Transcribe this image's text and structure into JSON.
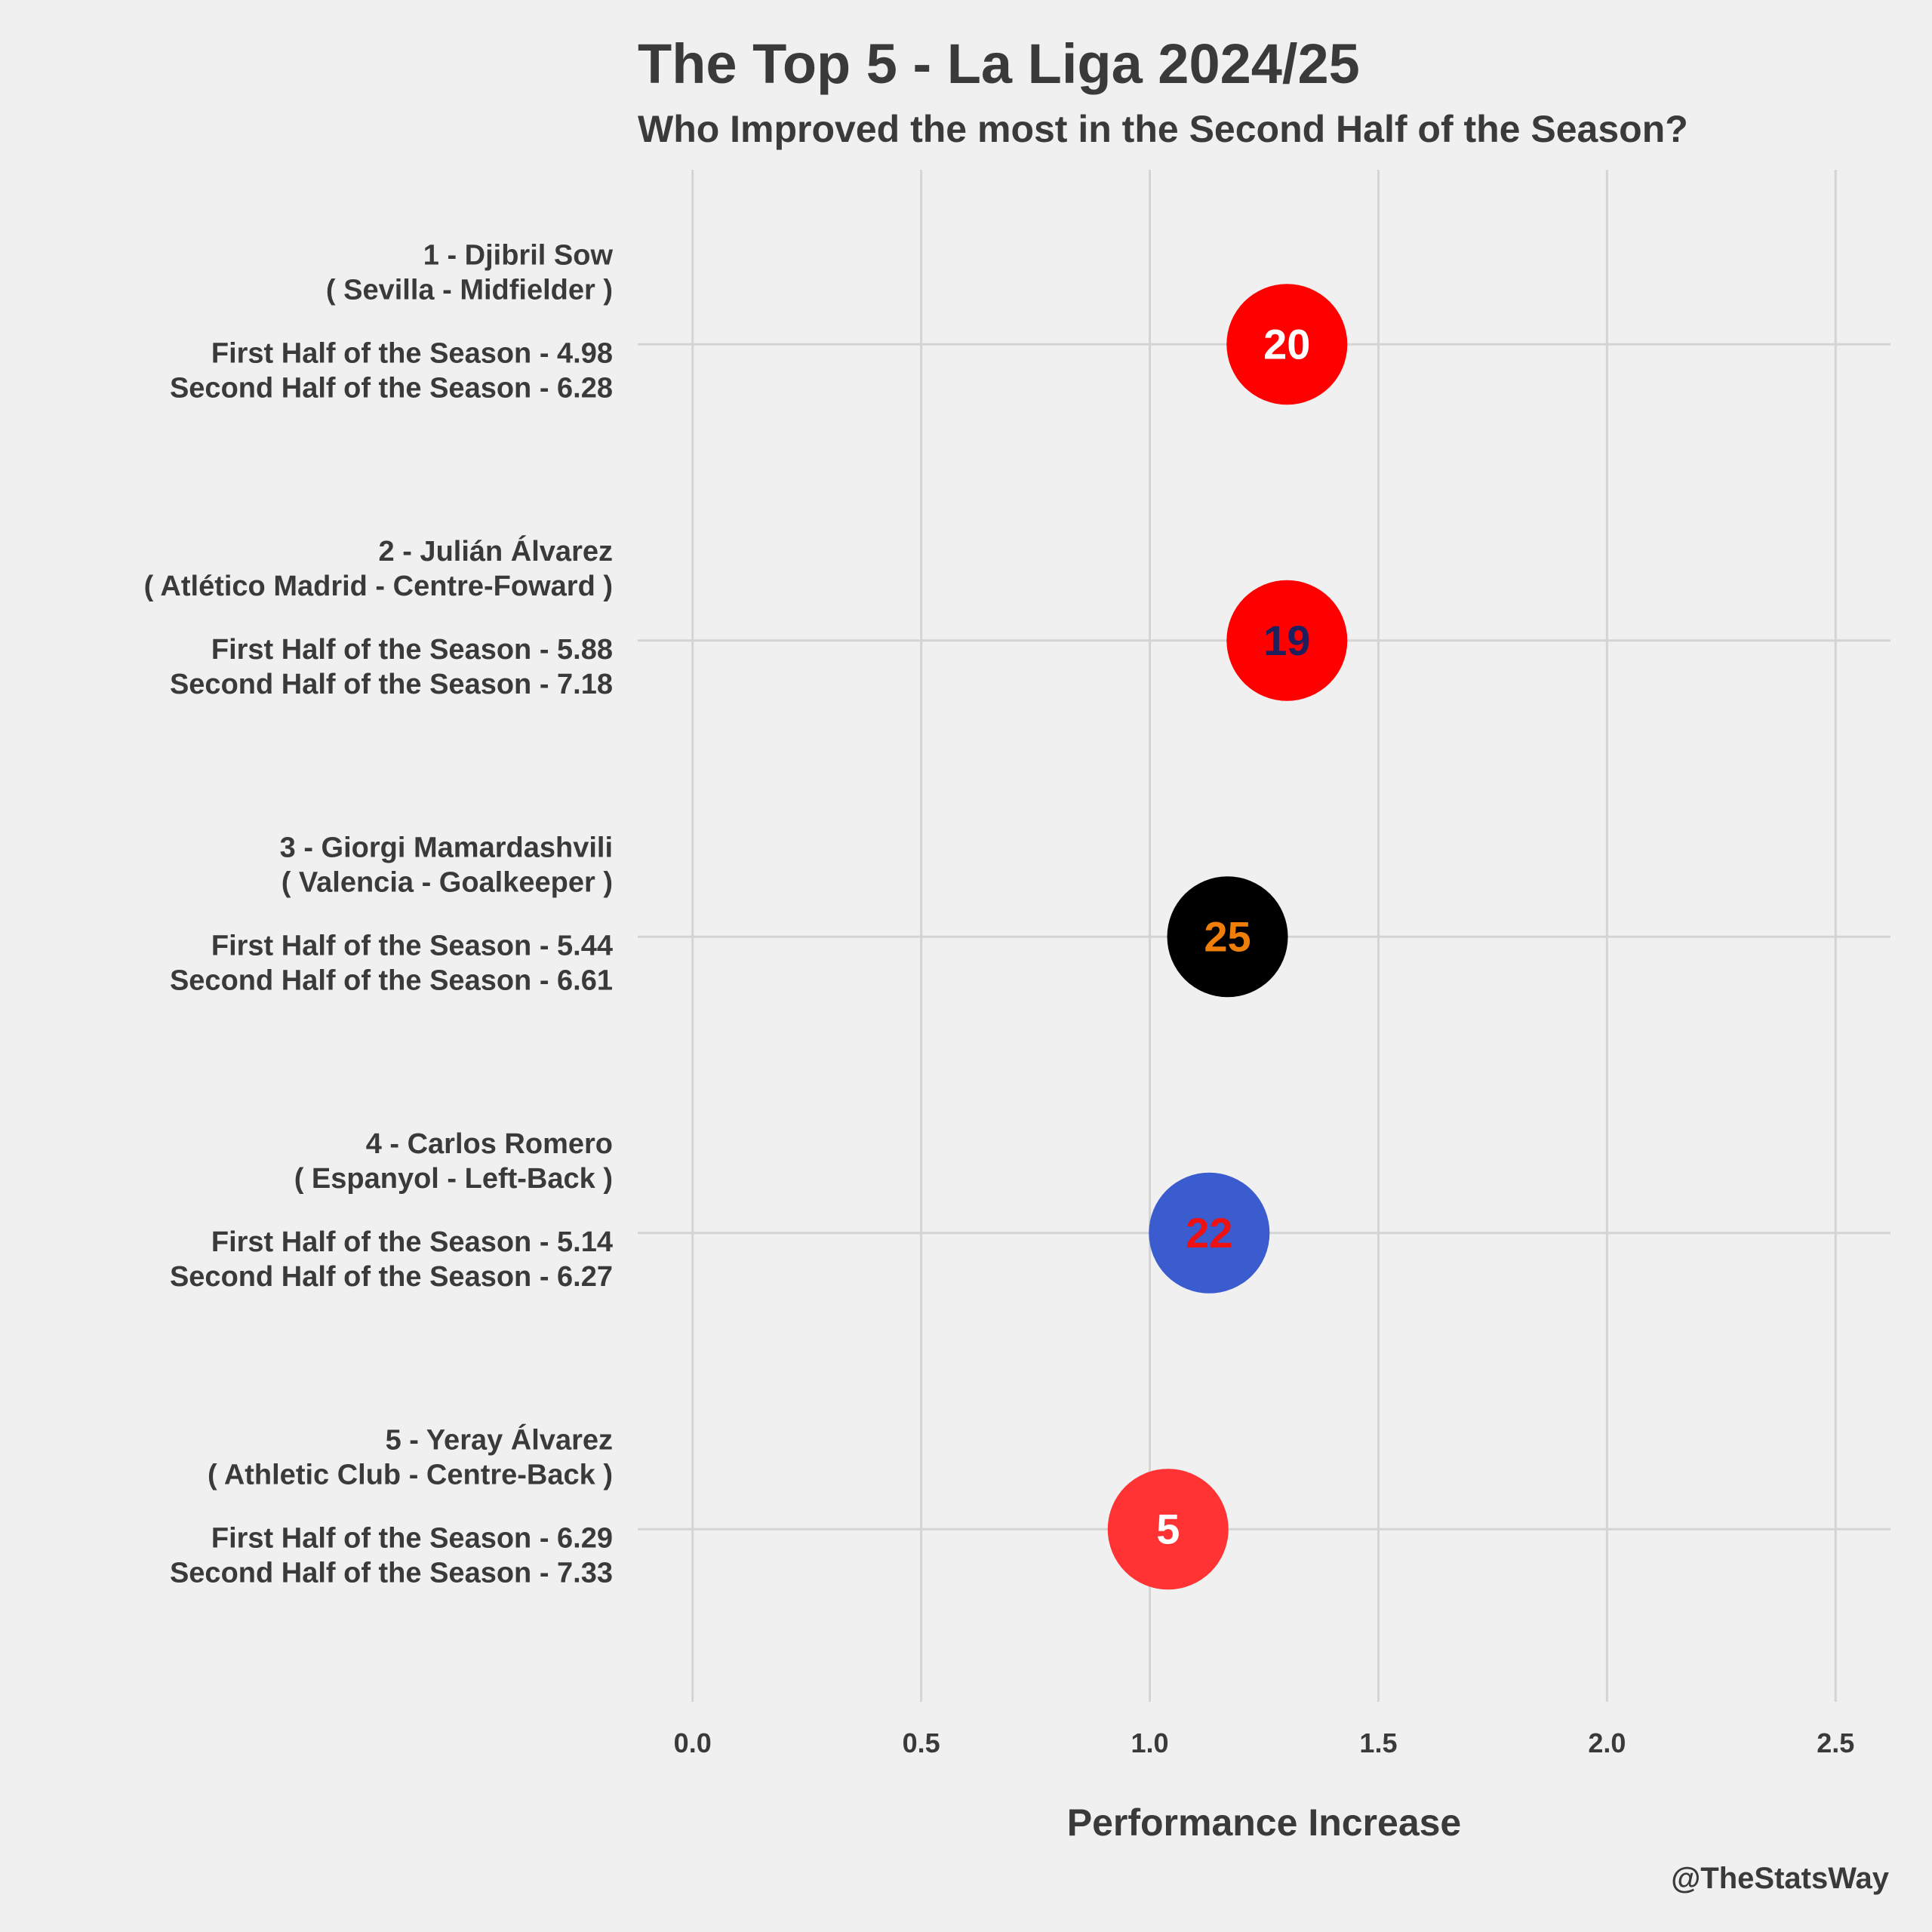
{
  "chart_data": {
    "type": "scatter",
    "title": "The Top 5 - La Liga 2024/25",
    "subtitle": "Who Improved the most in the Second Half of the Season?",
    "xlabel": "Performance Increase",
    "ylabel": "",
    "xlim": [
      -0.12,
      2.62
    ],
    "xticks": [
      {
        "value": 0.0,
        "label": "0.0"
      },
      {
        "value": 0.5,
        "label": "0.5"
      },
      {
        "value": 1.0,
        "label": "1.0"
      },
      {
        "value": 1.5,
        "label": "1.5"
      },
      {
        "value": 2.0,
        "label": "2.0"
      },
      {
        "value": 2.5,
        "label": "2.5"
      }
    ],
    "grid": true,
    "credit": "@TheStatsWay",
    "points": [
      {
        "rank_label": "1 - Djibril Sow",
        "team_pos": "( Sevilla - Midfielder )",
        "first_half": "First Half of the Season - 4.98",
        "second_half": "Second Half of the Season - 6.28",
        "x": 1.3,
        "number": "20",
        "fill": "#ff0000",
        "text_color": "#ffffff"
      },
      {
        "rank_label": "2 - Julián Álvarez",
        "team_pos": "( Atlético Madrid - Centre-Foward )",
        "first_half": "First Half of the Season - 5.88",
        "second_half": "Second Half of the Season - 7.18",
        "x": 1.3,
        "number": "19",
        "fill": "#ff0000",
        "text_color": "#1f1f5e"
      },
      {
        "rank_label": "3 - Giorgi Mamardashvili",
        "team_pos": "( Valencia - Goalkeeper )",
        "first_half": "First Half of the Season - 5.44",
        "second_half": "Second Half of the Season - 6.61",
        "x": 1.17,
        "number": "25",
        "fill": "#000000",
        "text_color": "#f07f0a"
      },
      {
        "rank_label": "4 - Carlos Romero",
        "team_pos": "( Espanyol - Left-Back )",
        "first_half": "First Half of the Season - 5.14",
        "second_half": "Second Half of the Season - 6.27",
        "x": 1.13,
        "number": "22",
        "fill": "#3a5ccf",
        "text_color": "#ee1111"
      },
      {
        "rank_label": "5 - Yeray Álvarez",
        "team_pos": "( Athletic Club - Centre-Back )",
        "first_half": "First Half of the Season - 6.29",
        "second_half": "Second Half of the Season - 7.33",
        "x": 1.04,
        "number": "5",
        "fill": "#ff3333",
        "text_color": "#ffffff"
      }
    ]
  }
}
